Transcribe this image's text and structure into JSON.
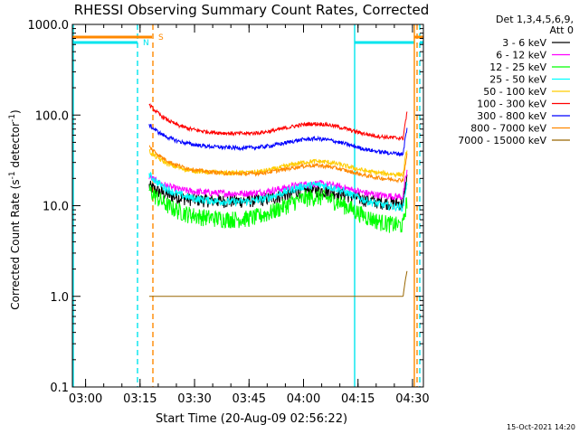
{
  "chart_data": {
    "type": "line",
    "title": "RHESSI Observing Summary Count Rates, Corrected",
    "xlabel": "Start Time (20-Aug-09 02:56:22)",
    "ylabel_main": "Corrected Count Rate (s",
    "ylabel_sup1": "-1",
    "ylabel_mid": " detector",
    "ylabel_sup2": "-1",
    "ylabel_end": ")",
    "footer": "15-Oct-2021 14:20",
    "y_scale": "log",
    "ylim": [
      0.1,
      1000
    ],
    "xlim": [
      "02:56:22",
      "04:33:00"
    ],
    "x_ticks": [
      "03:00",
      "03:15",
      "03:30",
      "03:45",
      "04:00",
      "04:15",
      "04:30"
    ],
    "y_ticks": [
      "0.1",
      "1.0",
      "10.0",
      "100.0",
      "1000.0"
    ],
    "legend_header": [
      "Det 1,3,4,5,6,9,",
      "Att 0"
    ],
    "legend_position": "top-right, outside plot",
    "annotations": {
      "saa": "S",
      "night": "N"
    },
    "series": [
      {
        "name": "3 - 6 keV",
        "color": "#000000",
        "values": [
          16.5,
          11.5,
          10.5,
          14.5,
          10.5
        ]
      },
      {
        "name": "6 - 12 keV",
        "color": "#ff00ff",
        "values": [
          21,
          14,
          13.5,
          17.5,
          12.5
        ]
      },
      {
        "name": "12 - 25 keV",
        "color": "#00ff00",
        "values": [
          15,
          7.5,
          6,
          12,
          6
        ]
      },
      {
        "name": "25 - 50 keV",
        "color": "#00ffff",
        "values": [
          22,
          11.5,
          11,
          17,
          9.5
        ]
      },
      {
        "name": "50 - 100 keV",
        "color": "#ffcc00",
        "values": [
          40,
          23,
          23,
          31,
          22
        ]
      },
      {
        "name": "100 - 300 keV",
        "color": "#ff0000",
        "values": [
          130,
          65,
          62,
          80,
          55
        ]
      },
      {
        "name": "300 - 800 keV",
        "color": "#0000ff",
        "values": [
          78,
          46,
          42,
          54,
          37
        ]
      },
      {
        "name": "800 - 7000 keV",
        "color": "#ff8800",
        "values": [
          45,
          24,
          21,
          27,
          19
        ]
      },
      {
        "name": "7000 - 15000 keV",
        "color": "#996600",
        "values": [
          1.0,
          1.0,
          1.0,
          1.0,
          1.0
        ]
      }
    ]
  }
}
